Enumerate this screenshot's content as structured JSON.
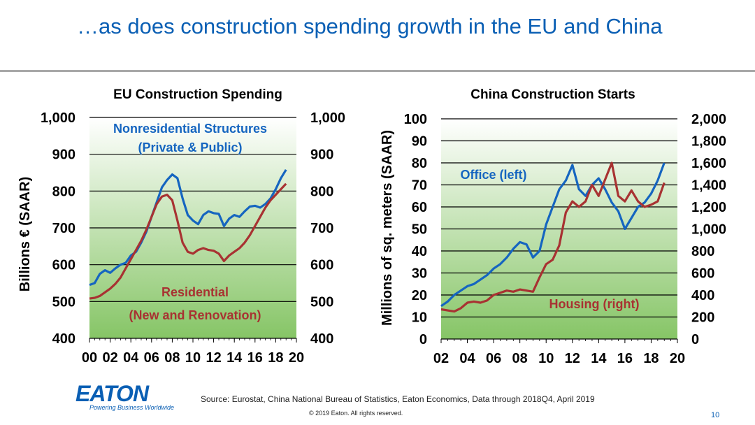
{
  "slide": {
    "title": "…as does construction spending growth in the EU and China",
    "source": "Source: Eurostat, China National Bureau of Statistics, Eaton Economics, Data through 2018Q4, April 2019",
    "copyright": "© 2019 Eaton. All rights reserved.",
    "page_number": "10",
    "logo": {
      "wordmark": "EATON",
      "tagline": "Powering Business Worldwide"
    }
  },
  "colors": {
    "title": "#0a5fb4",
    "blue_series": "#1565c0",
    "red_series": "#a83232",
    "plot_top": "#ffffff",
    "plot_bottom": "#86c566"
  },
  "chart_data": [
    {
      "type": "line",
      "title": "EU Construction Spending",
      "ylabel": "Billions € (SAAR)",
      "xlim": [
        2000,
        2020
      ],
      "ylim": [
        400,
        1000
      ],
      "x_ticks": [
        "00",
        "02",
        "04",
        "06",
        "08",
        "10",
        "12",
        "14",
        "16",
        "18",
        "20"
      ],
      "y_ticks": [
        "400",
        "500",
        "600",
        "700",
        "800",
        "900",
        "1,000"
      ],
      "y_ticks_right": [
        "400",
        "500",
        "600",
        "700",
        "800",
        "900",
        "1,000"
      ],
      "grid": true,
      "series": [
        {
          "name": "Nonresidential Structures",
          "x": [
            2000,
            2000.5,
            2001,
            2001.5,
            2002,
            2002.5,
            2003,
            2003.5,
            2004,
            2004.5,
            2005,
            2005.5,
            2006,
            2006.5,
            2007,
            2007.5,
            2008,
            2008.5,
            2009,
            2009.5,
            2010,
            2010.5,
            2011,
            2011.5,
            2012,
            2012.5,
            2013,
            2013.5,
            2014,
            2014.5,
            2015,
            2015.5,
            2016,
            2016.5,
            2017,
            2017.5,
            2018,
            2018.5,
            2019
          ],
          "values": [
            545,
            550,
            575,
            585,
            578,
            590,
            600,
            605,
            625,
            635,
            660,
            690,
            730,
            770,
            810,
            830,
            845,
            835,
            780,
            735,
            720,
            710,
            735,
            745,
            740,
            738,
            705,
            725,
            735,
            730,
            745,
            758,
            760,
            755,
            765,
            780,
            805,
            835,
            858
          ]
        },
        {
          "name": "Residential",
          "x": [
            2000,
            2000.5,
            2001,
            2001.5,
            2002,
            2002.5,
            2003,
            2003.5,
            2004,
            2004.5,
            2005,
            2005.5,
            2006,
            2006.5,
            2007,
            2007.5,
            2008,
            2008.5,
            2009,
            2009.5,
            2010,
            2010.5,
            2011,
            2011.5,
            2012,
            2012.5,
            2013,
            2013.5,
            2014,
            2014.5,
            2015,
            2015.5,
            2016,
            2016.5,
            2017,
            2017.5,
            2018,
            2018.5,
            2019
          ],
          "values": [
            508,
            510,
            515,
            525,
            535,
            548,
            565,
            590,
            615,
            640,
            665,
            695,
            730,
            765,
            785,
            790,
            775,
            720,
            660,
            635,
            630,
            640,
            645,
            640,
            638,
            630,
            610,
            625,
            635,
            645,
            660,
            680,
            705,
            730,
            755,
            775,
            790,
            805,
            820
          ]
        },
        {
          "name": "Residential",
          "x": [
            2019
          ],
          "values": [
            820
          ]
        }
      ],
      "annotations": [
        {
          "text": "Nonresidential Structures",
          "color": "#1565c0"
        },
        {
          "text": "(Private & Public)",
          "color": "#1565c0"
        },
        {
          "text": "Residential",
          "color": "#a83232"
        },
        {
          "text": "(New and Renovation)",
          "color": "#a83232"
        }
      ]
    },
    {
      "type": "line",
      "title": "China Construction Starts",
      "ylabel": "Millions of sq. meters (SAAR)",
      "xlim": [
        2002,
        2020
      ],
      "ylim": [
        0,
        100
      ],
      "ylim_right": [
        0,
        2000
      ],
      "x_ticks": [
        "02",
        "04",
        "06",
        "08",
        "10",
        "12",
        "14",
        "16",
        "18",
        "20"
      ],
      "y_ticks": [
        "0",
        "10",
        "20",
        "30",
        "40",
        "50",
        "60",
        "70",
        "80",
        "90",
        "100"
      ],
      "y_ticks_right": [
        "0",
        "200",
        "400",
        "600",
        "800",
        "1,000",
        "1,200",
        "1,400",
        "1,600",
        "1,800",
        "2,000"
      ],
      "grid": true,
      "series": [
        {
          "name": "Office (left)",
          "axis": "left",
          "x": [
            2002,
            2002.5,
            2003,
            2003.5,
            2004,
            2004.5,
            2005,
            2005.5,
            2006,
            2006.5,
            2007,
            2007.5,
            2008,
            2008.5,
            2009,
            2009.5,
            2010,
            2010.5,
            2011,
            2011.5,
            2012,
            2012.5,
            2013,
            2013.5,
            2014,
            2014.5,
            2015,
            2015.5,
            2016,
            2016.5,
            2017,
            2017.5,
            2018,
            2018.5,
            2019
          ],
          "values": [
            15,
            17,
            20,
            22,
            24,
            25,
            27,
            29,
            32,
            34,
            37,
            41,
            44,
            43,
            37,
            40,
            52,
            60,
            68,
            72,
            79,
            68,
            65,
            70,
            73,
            68,
            62,
            58,
            50,
            55,
            60,
            62,
            66,
            72,
            80
          ]
        },
        {
          "name": "Housing (right)",
          "axis": "right",
          "x": [
            2002,
            2002.5,
            2003,
            2003.5,
            2004,
            2004.5,
            2005,
            2005.5,
            2006,
            2006.5,
            2007,
            2007.5,
            2008,
            2008.5,
            2009,
            2009.5,
            2010,
            2010.5,
            2011,
            2011.5,
            2012,
            2012.5,
            2013,
            2013.5,
            2014,
            2014.5,
            2015,
            2015.5,
            2016,
            2016.5,
            2017,
            2017.5,
            2018,
            2018.5,
            2019
          ],
          "values": [
            270,
            260,
            250,
            280,
            330,
            340,
            330,
            350,
            400,
            420,
            440,
            430,
            450,
            440,
            430,
            560,
            680,
            720,
            850,
            1150,
            1250,
            1200,
            1250,
            1400,
            1300,
            1450,
            1600,
            1300,
            1250,
            1350,
            1250,
            1200,
            1220,
            1250,
            1420
          ]
        }
      ],
      "annotations": [
        {
          "text": "Office (left)",
          "color": "#1565c0"
        },
        {
          "text": "Housing (right)",
          "color": "#a83232"
        }
      ]
    }
  ]
}
